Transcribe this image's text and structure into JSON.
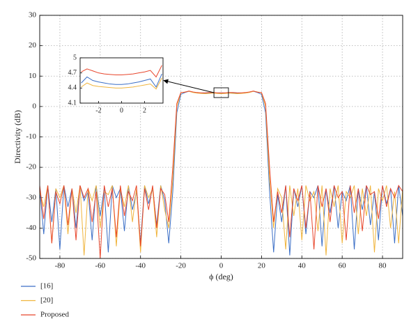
{
  "chart_data": [
    {
      "type": "line",
      "xlabel": "ϕ (deg)",
      "ylabel": "Directivity (dB)",
      "xlim": [
        -90,
        90
      ],
      "ylim": [
        -50,
        30
      ],
      "xticks": [
        -80,
        -60,
        -40,
        -20,
        0,
        20,
        40,
        60,
        80
      ],
      "yticks": [
        -50,
        -40,
        -30,
        -20,
        -10,
        0,
        10,
        20,
        30
      ],
      "grid": true,
      "legend": "bottom-left",
      "x": [
        -90,
        -88,
        -86,
        -84,
        -82,
        -80,
        -78,
        -76,
        -74,
        -72,
        -70,
        -68,
        -66,
        -64,
        -62,
        -60,
        -58,
        -56,
        -54,
        -52,
        -50,
        -48,
        -46,
        -44,
        -42,
        -40,
        -38,
        -36,
        -34,
        -32,
        -30,
        -28,
        -26,
        -24,
        -22,
        -20,
        -18,
        -16,
        -14,
        -12,
        -10,
        -8,
        -6,
        -4,
        -2,
        0,
        2,
        4,
        6,
        8,
        10,
        12,
        14,
        16,
        18,
        20,
        22,
        24,
        26,
        28,
        30,
        32,
        34,
        36,
        38,
        40,
        42,
        44,
        46,
        48,
        50,
        52,
        54,
        56,
        58,
        60,
        62,
        64,
        66,
        68,
        70,
        72,
        74,
        76,
        78,
        80,
        82,
        84,
        86,
        88,
        90
      ],
      "series": [
        {
          "name": "[16]",
          "color": "#3a6ec6",
          "values": [
            -27,
            -42,
            -26,
            -38,
            -27,
            -47,
            -26,
            -33,
            -27,
            -40,
            -26,
            -31,
            -28,
            -44,
            -26,
            -36,
            -27,
            -48,
            -26,
            -30,
            -27,
            -41,
            -26,
            -34,
            -28,
            -45,
            -26,
            -32,
            -27,
            -39,
            -26,
            -31,
            -45,
            -28,
            -2,
            4,
            4.6,
            5,
            4.7,
            4.5,
            4.4,
            4.3,
            4.4,
            4.5,
            4.4,
            4.3,
            4.4,
            4.5,
            4.4,
            4.3,
            4.4,
            4.5,
            4.7,
            5,
            4.6,
            4,
            -2,
            -28,
            -48,
            -29,
            -38,
            -26,
            -49,
            -27,
            -33,
            -26,
            -42,
            -28,
            -30,
            -26,
            -46,
            -27,
            -35,
            -26,
            -40,
            -28,
            -31,
            -26,
            -47,
            -27,
            -34,
            -26,
            -39,
            -28,
            -44,
            -26,
            -32,
            -27,
            -45,
            -26,
            -36
          ]
        },
        {
          "name": "[20]",
          "color": "#f0b43c",
          "values": [
            -28,
            -33,
            -26,
            -45,
            -27,
            -30,
            -26,
            -42,
            -27,
            -35,
            -26,
            -49,
            -27,
            -31,
            -26,
            -40,
            -28,
            -29,
            -26,
            -46,
            -27,
            -33,
            -26,
            -38,
            -27,
            -48,
            -26,
            -30,
            -27,
            -43,
            -26,
            -34,
            -40,
            -24,
            0,
            4.5,
            4.8,
            5,
            4.6,
            4.4,
            4.3,
            4.2,
            4.3,
            4.4,
            4.3,
            4.2,
            4.3,
            4.4,
            4.3,
            4.2,
            4.3,
            4.4,
            4.6,
            5,
            4.8,
            4.5,
            0,
            -24,
            -40,
            -27,
            -30,
            -47,
            -26,
            -36,
            -27,
            -44,
            -26,
            -31,
            -28,
            -41,
            -26,
            -49,
            -27,
            -33,
            -26,
            -45,
            -28,
            -30,
            -26,
            -42,
            -27,
            -36,
            -26,
            -48,
            -27,
            -31,
            -26,
            -40,
            -28,
            -45,
            -27
          ]
        },
        {
          "name": "Proposed",
          "color": "#e8462c",
          "values": [
            -26,
            -37,
            -26,
            -45,
            -28,
            -32,
            -26,
            -39,
            -27,
            -44,
            -26,
            -30,
            -27,
            -38,
            -28,
            -50,
            -26,
            -33,
            -27,
            -43,
            -26,
            -36,
            -28,
            -31,
            -26,
            -46,
            -27,
            -34,
            -26,
            -40,
            -27,
            -29,
            -38,
            -20,
            1,
            4.6,
            4.7,
            5.1,
            4.8,
            4.6,
            4.5,
            4.5,
            4.6,
            4.6,
            4.5,
            4.5,
            4.5,
            4.6,
            4.6,
            4.5,
            4.5,
            4.6,
            4.8,
            5.1,
            4.7,
            4.6,
            1,
            -20,
            -38,
            -28,
            -35,
            -26,
            -43,
            -27,
            -31,
            -26,
            -40,
            -28,
            -47,
            -26,
            -33,
            -27,
            -38,
            -26,
            -30,
            -28,
            -44,
            -26,
            -35,
            -27,
            -41,
            -26,
            -29,
            -28,
            -37,
            -26,
            -33,
            -27,
            -30,
            -26,
            -28
          ]
        }
      ]
    },
    {
      "type": "line",
      "xlim": [
        -3.6,
        3.6
      ],
      "ylim": [
        4.1,
        5
      ],
      "xticks": [
        -2,
        0,
        2
      ],
      "yticks": [
        4.1,
        4.4,
        4.7,
        5
      ],
      "x": [
        -3.5,
        -3,
        -2.5,
        -2,
        -1.5,
        -1,
        -0.5,
        0,
        0.5,
        1,
        1.5,
        2,
        2.5,
        3,
        3.5
      ],
      "series": [
        {
          "color": "#3a6ec6",
          "values": [
            4.5,
            4.62,
            4.55,
            4.52,
            4.5,
            4.48,
            4.47,
            4.47,
            4.48,
            4.5,
            4.52,
            4.55,
            4.58,
            4.42,
            4.68
          ]
        },
        {
          "color": "#f0b43c",
          "values": [
            4.42,
            4.5,
            4.45,
            4.43,
            4.42,
            4.41,
            4.4,
            4.4,
            4.41,
            4.42,
            4.44,
            4.46,
            4.48,
            4.38,
            4.6
          ]
        },
        {
          "color": "#e8462c",
          "values": [
            4.72,
            4.78,
            4.74,
            4.7,
            4.68,
            4.67,
            4.66,
            4.66,
            4.67,
            4.68,
            4.7,
            4.72,
            4.75,
            4.62,
            4.85
          ]
        }
      ]
    }
  ]
}
